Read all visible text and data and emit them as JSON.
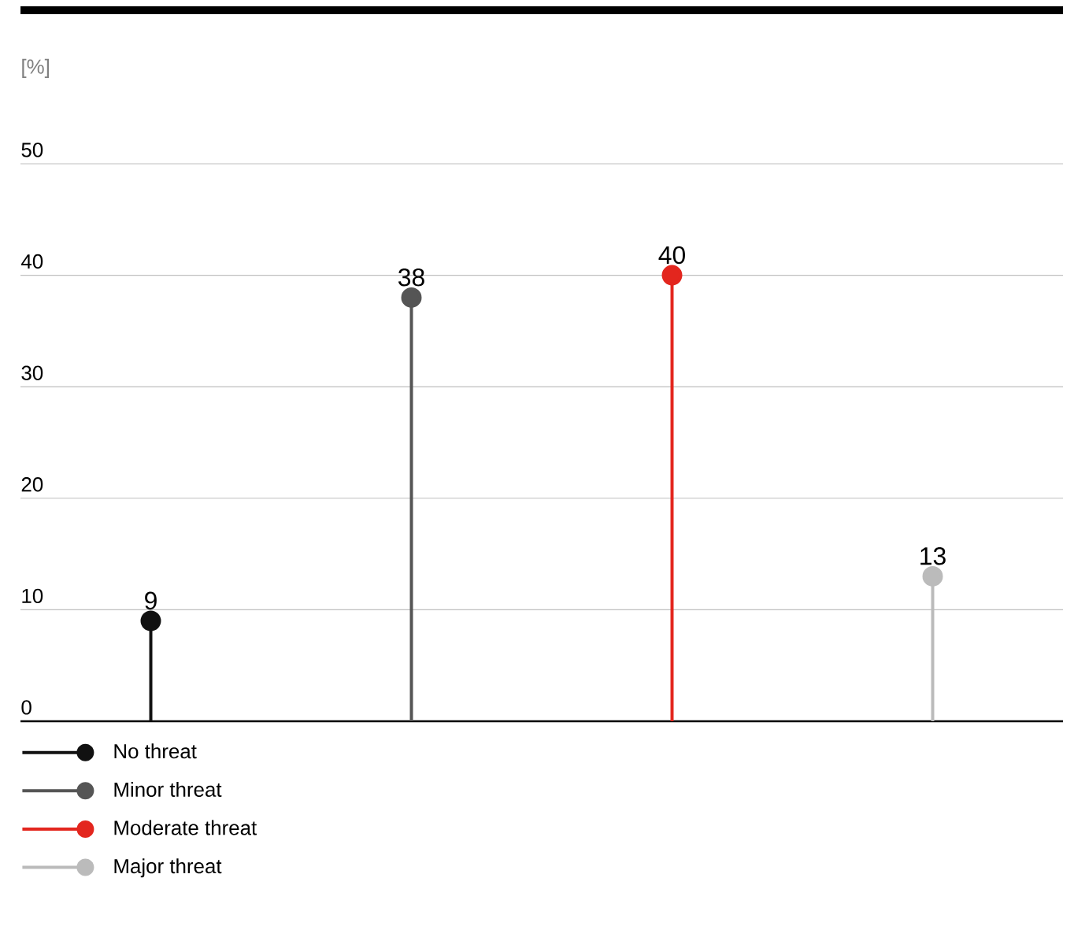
{
  "chart_data": {
    "type": "lollipop",
    "ylabel": "[%]",
    "categories": [
      null,
      null,
      null,
      null
    ],
    "series": [
      {
        "name": "No threat",
        "color": "#111111",
        "values": [
          9,
          null,
          null,
          null
        ]
      },
      {
        "name": "Minor threat",
        "color": "#555555",
        "values": [
          null,
          38,
          null,
          null
        ]
      },
      {
        "name": "Moderate threat",
        "color": "#e3261e",
        "values": [
          null,
          null,
          40,
          null
        ]
      },
      {
        "name": "Major threat",
        "color": "#bbbbbb",
        "values": [
          null,
          null,
          null,
          13
        ]
      }
    ],
    "ylim": [
      0,
      50
    ],
    "yticks": [
      0,
      10,
      20,
      30,
      40,
      50
    ],
    "grid": "y",
    "legend": "bottom",
    "data_labels": true,
    "marker": "circle",
    "line_style": "solid"
  }
}
